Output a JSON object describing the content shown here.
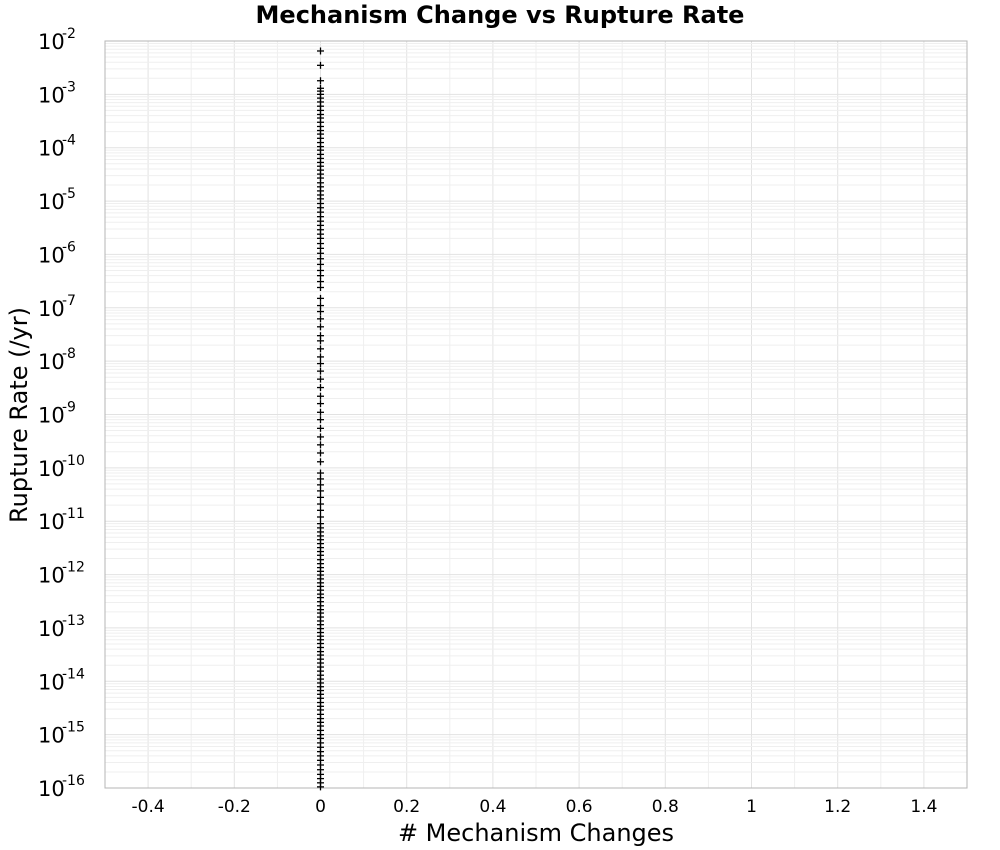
{
  "chart_data": {
    "type": "scatter",
    "title": "Mechanism Change vs Rupture Rate",
    "xlabel": "# Mechanism Changes",
    "ylabel": "Rupture Rate (/yr)",
    "xlim": [
      -0.5,
      1.5
    ],
    "ylim": [
      1e-16,
      0.01
    ],
    "y_scale": "log",
    "grid": true,
    "marker": "plus",
    "marker_color": "#000000",
    "x_ticks": [
      "-0.4",
      "-0.2",
      "0",
      "0.2",
      "0.4",
      "0.6",
      "0.8",
      "1",
      "1.2",
      "1.4"
    ],
    "y_ticks": [
      {
        "base": "10",
        "exp": "-2"
      },
      {
        "base": "10",
        "exp": "-3"
      },
      {
        "base": "10",
        "exp": "-4"
      },
      {
        "base": "10",
        "exp": "-5"
      },
      {
        "base": "10",
        "exp": "-6"
      },
      {
        "base": "10",
        "exp": "-7"
      },
      {
        "base": "10",
        "exp": "-8"
      },
      {
        "base": "10",
        "exp": "-9"
      },
      {
        "base": "10",
        "exp": "-10"
      },
      {
        "base": "10",
        "exp": "-11"
      },
      {
        "base": "10",
        "exp": "-12"
      },
      {
        "base": "10",
        "exp": "-13"
      },
      {
        "base": "10",
        "exp": "-14"
      },
      {
        "base": "10",
        "exp": "-15"
      },
      {
        "base": "10",
        "exp": "-16"
      }
    ],
    "series": [
      {
        "x_constant": 0,
        "y": [
          0.0065,
          0.0035,
          0.0018,
          0.0013,
          0.00115,
          0.001,
          0.00085,
          0.00072,
          0.0006,
          0.0005,
          0.00042,
          0.00036,
          0.0003,
          0.00025,
          0.00021,
          0.00018,
          0.00015,
          0.000125,
          0.000105,
          9e-05,
          7.5e-05,
          6.3e-05,
          5.3e-05,
          4.5e-05,
          3.8e-05,
          3.2e-05,
          2.7e-05,
          2.2e-05,
          1.85e-05,
          1.55e-05,
          1.3e-05,
          1.1e-05,
          9e-06,
          7.5e-06,
          6.2e-06,
          5.1e-06,
          4.2e-06,
          3.5e-06,
          2.9e-06,
          2.4e-06,
          2e-06,
          1.6e-06,
          1.3e-06,
          1.05e-06,
          8.3e-07,
          6.5e-07,
          5e-07,
          4e-07,
          3.1e-07,
          2.4e-07,
          1.5e-07,
          1.1e-07,
          8.5e-08,
          6.2e-08,
          4.4e-08,
          3e-08,
          2.4e-08,
          1.7e-08,
          1.2e-08,
          9e-09,
          6.5e-09,
          4.6e-09,
          3.2e-09,
          2.2e-09,
          1.6e-09,
          1.1e-09,
          8e-10,
          5.5e-10,
          3.8e-10,
          2.7e-10,
          1.9e-10,
          1.3e-10,
          8e-11,
          6.2e-11,
          4.8e-11,
          3.7e-11,
          2.8e-11,
          2.1e-11,
          1.6e-11,
          1.2e-11,
          9e-12,
          7.5e-12,
          6.3e-12,
          5.3e-12,
          4.5e-12,
          3.8e-12,
          3.2e-12,
          2.7e-12,
          2.3e-12,
          1.9e-12,
          1.6e-12,
          1.35e-12,
          1.15e-12,
          9.8e-13,
          8.3e-13,
          7e-13,
          6e-13,
          5.1e-13,
          4.3e-13,
          3.7e-13,
          3.1e-13,
          2.6e-13,
          2.2e-13,
          1.9e-13,
          1.6e-13,
          1.35e-13,
          1.15e-13,
          9.7e-14,
          8.2e-14,
          7e-14,
          6e-14,
          5.1e-14,
          4.3e-14,
          3.6e-14,
          3.1e-14,
          2.6e-14,
          2.2e-14,
          1.85e-14,
          1.55e-14,
          1.3e-14,
          1.1e-14,
          9.3e-15,
          7.9e-15,
          6.7e-15,
          5.7e-15,
          4.8e-15,
          4e-15,
          3.4e-15,
          2.9e-15,
          2.4e-15,
          2e-15,
          1.7e-15,
          1.45e-15,
          1.2e-15,
          1e-15,
          8.5e-16,
          7e-16,
          5.8e-16,
          4.8e-16,
          4e-16,
          3.3e-16,
          2.7e-16,
          2.2e-16,
          1.8e-16,
          1.5e-16,
          1.25e-16,
          1.05e-16
        ]
      }
    ]
  }
}
